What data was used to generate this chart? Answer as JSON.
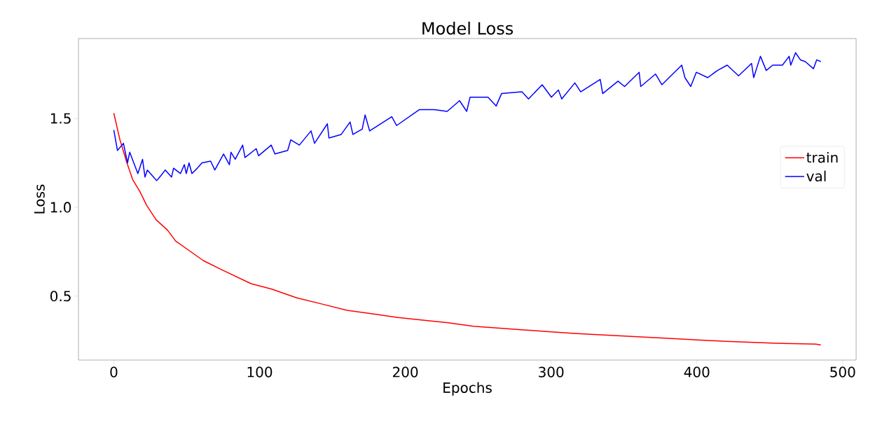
{
  "chart_data": {
    "type": "line",
    "title": "Model Loss",
    "xlabel": "Epochs",
    "ylabel": "Loss",
    "xlim": [
      -24.25,
      509.25
    ],
    "ylim": [
      0.14,
      1.95
    ],
    "xticks": [
      0,
      100,
      200,
      300,
      400,
      500
    ],
    "yticks": [
      {
        "value": 0.5,
        "label": "0.5"
      },
      {
        "value": 1.0,
        "label": "1.0"
      },
      {
        "value": 1.5,
        "label": "1.5"
      }
    ],
    "legend": "right",
    "grid": false,
    "marker": "none",
    "line_style": "solid",
    "series": [
      {
        "name": "train",
        "color": "#ff0000",
        "x": [
          0,
          4.2,
          9,
          13,
          17.8,
          22.6,
          29,
          37,
          42.4,
          61.4,
          73.6,
          94.2,
          108,
          125.6,
          143,
          160,
          177.5,
          194.8,
          212,
          229.4,
          246.7,
          281.3,
          315.9,
          350.4,
          385,
          419.6,
          454.2,
          481.8,
          485
        ],
        "values": [
          1.53,
          1.38,
          1.25,
          1.155,
          1.09,
          1.01,
          0.93,
          0.87,
          0.81,
          0.7,
          0.65,
          0.57,
          0.54,
          0.49,
          0.455,
          0.42,
          0.4,
          0.38,
          0.365,
          0.35,
          0.33,
          0.31,
          0.29,
          0.275,
          0.26,
          0.245,
          0.235,
          0.23,
          0.225
        ]
      },
      {
        "name": "val",
        "color": "#0000ff",
        "x": [
          0,
          2.5,
          6.6,
          9.4,
          10.9,
          16.5,
          19.7,
          21.4,
          23,
          29.4,
          32.5,
          35.3,
          39.6,
          41,
          45.7,
          48.4,
          49.7,
          51.6,
          53.6,
          57.3,
          60.5,
          66.4,
          69.3,
          75.3,
          79.3,
          80.4,
          83.3,
          88.4,
          90,
          97.7,
          99.3,
          108,
          110.5,
          119.3,
          121.4,
          127.3,
          135.3,
          137.7,
          146.5,
          147.6,
          156,
          162.1,
          164,
          170.4,
          172.4,
          175.5,
          190.7,
          194,
          209.7,
          219.8,
          228.7,
          237.2,
          242.1,
          244.4,
          256.7,
          262.3,
          266,
          280,
          284.5,
          293.9,
          300.2,
          305,
          307.3,
          316.3,
          320.3,
          333.7,
          335.4,
          345.9,
          350.4,
          360.4,
          361.5,
          371.6,
          376,
          389.6,
          391.8,
          395.8,
          399.6,
          407.4,
          414.1,
          420.8,
          428.6,
          437.5,
          439,
          443.6,
          447.6,
          452,
          458.7,
          463.3,
          464.4,
          467.7,
          471,
          474.4,
          480,
          482.2,
          485
        ],
        "values": [
          1.435,
          1.32,
          1.36,
          1.25,
          1.31,
          1.19,
          1.27,
          1.17,
          1.21,
          1.15,
          1.18,
          1.21,
          1.17,
          1.22,
          1.19,
          1.24,
          1.19,
          1.25,
          1.19,
          1.22,
          1.25,
          1.26,
          1.21,
          1.3,
          1.24,
          1.31,
          1.27,
          1.35,
          1.28,
          1.33,
          1.29,
          1.35,
          1.3,
          1.32,
          1.38,
          1.35,
          1.43,
          1.36,
          1.47,
          1.39,
          1.41,
          1.48,
          1.41,
          1.44,
          1.52,
          1.43,
          1.51,
          1.46,
          1.55,
          1.55,
          1.54,
          1.6,
          1.54,
          1.62,
          1.62,
          1.57,
          1.64,
          1.65,
          1.61,
          1.69,
          1.62,
          1.66,
          1.61,
          1.7,
          1.65,
          1.72,
          1.64,
          1.71,
          1.68,
          1.76,
          1.68,
          1.75,
          1.69,
          1.8,
          1.73,
          1.68,
          1.76,
          1.73,
          1.77,
          1.8,
          1.74,
          1.81,
          1.73,
          1.85,
          1.77,
          1.8,
          1.8,
          1.85,
          1.8,
          1.87,
          1.83,
          1.82,
          1.78,
          1.83,
          1.82
        ]
      }
    ]
  }
}
